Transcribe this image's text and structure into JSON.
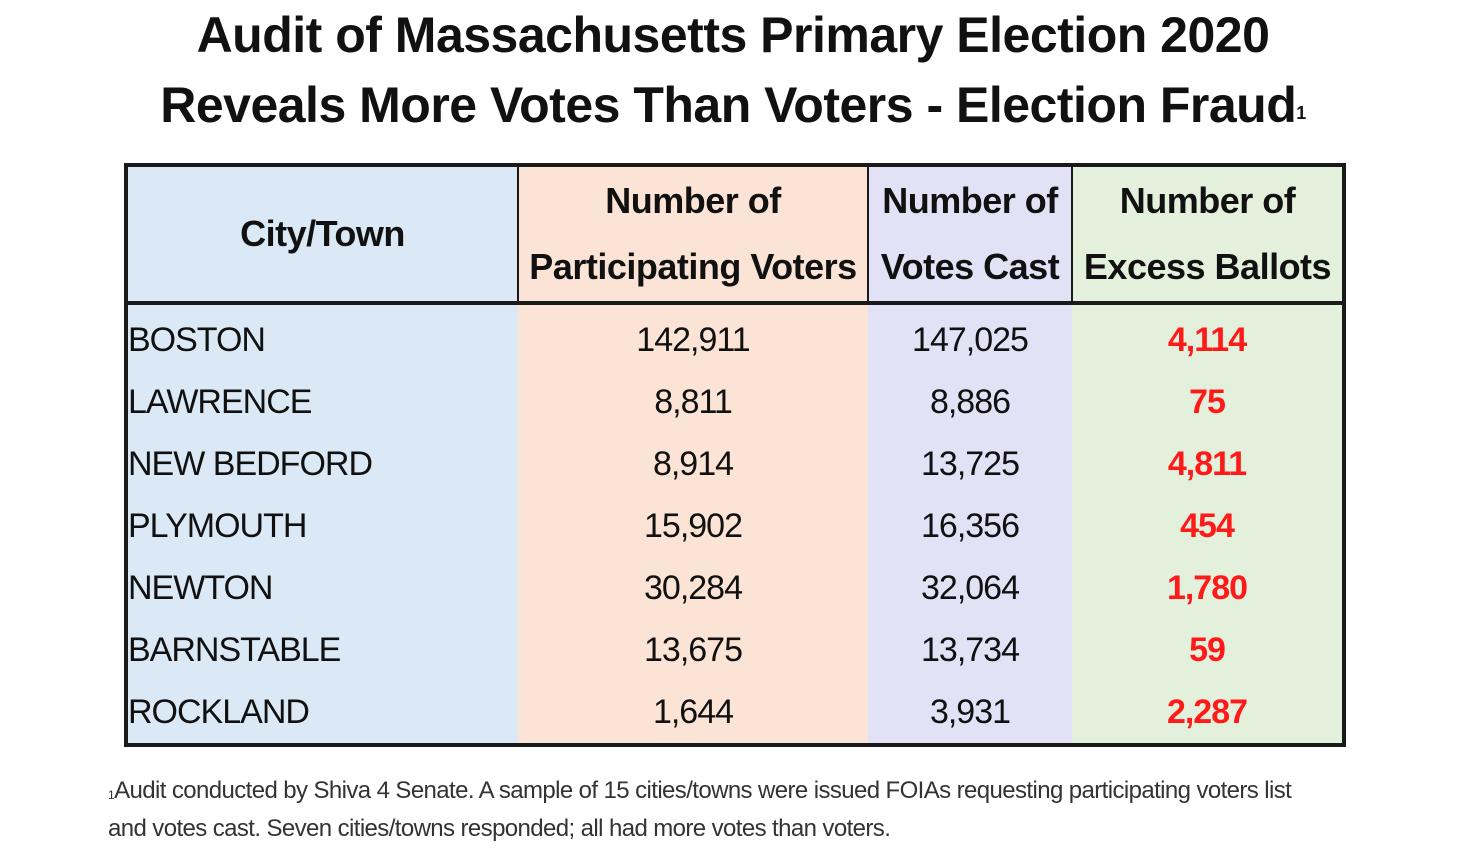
{
  "title": {
    "line1": "Audit of Massachusetts Primary Election 2020",
    "line2": "Reveals More Votes Than Voters - Election Fraud",
    "footnote_marker": "1"
  },
  "table": {
    "headers": {
      "city": "City/Town",
      "participating_line1": "Number of",
      "participating_line2": "Participating Voters",
      "votes_line1": "Number of",
      "votes_line2": "Votes Cast",
      "excess_line1": "Number of",
      "excess_line2": "Excess Ballots"
    },
    "rows": [
      {
        "city": "BOSTON",
        "participating": "142,911",
        "votes": "147,025",
        "excess": "4,114"
      },
      {
        "city": "LAWRENCE",
        "participating": "8,811",
        "votes": "8,886",
        "excess": "75"
      },
      {
        "city": "NEW BEDFORD",
        "participating": "8,914",
        "votes": "13,725",
        "excess": "4,811"
      },
      {
        "city": "PLYMOUTH",
        "participating": "15,902",
        "votes": "16,356",
        "excess": "454"
      },
      {
        "city": "NEWTON",
        "participating": "30,284",
        "votes": "32,064",
        "excess": "1,780"
      },
      {
        "city": "BARNSTABLE",
        "participating": "13,675",
        "votes": "13,734",
        "excess": "59"
      },
      {
        "city": "ROCKLAND",
        "participating": "1,644",
        "votes": "3,931",
        "excess": "2,287"
      }
    ],
    "colors": {
      "city_col": "#dbe9f7",
      "participating_col": "#fbe4d5",
      "votes_col": "#e3e1f5",
      "excess_col": "#e3f0dc",
      "excess_text": "#ff1a1a"
    }
  },
  "footnote": {
    "marker": "1",
    "line1": "Audit conducted by Shiva 4 Senate. A sample of 15 cities/towns were issued FOIAs requesting participating voters list",
    "line2": "and votes cast. Seven cities/towns responded; all had more votes than voters."
  }
}
